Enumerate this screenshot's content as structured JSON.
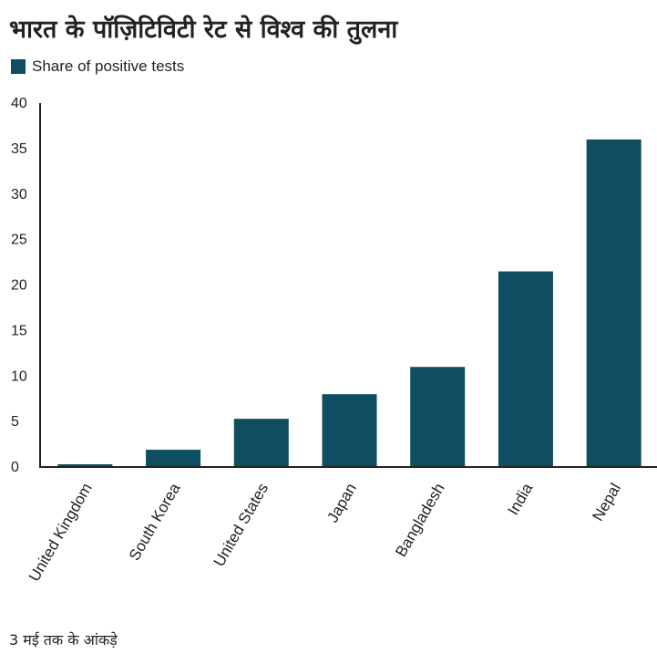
{
  "title": "भारत के पॉज़िटिविटी रेट से विश्व की तुलना",
  "footnote": "3 मई तक के आंकड़े",
  "colors": {
    "bar": "#0e4e60",
    "axis": "#222222",
    "text": "#222222"
  },
  "chart_data": {
    "type": "bar",
    "title": "भारत के पॉज़िटिविटी रेट से विश्व की तुलना",
    "xlabel": "",
    "ylabel": "",
    "legend": "top-left",
    "grid": false,
    "categories": [
      "United Kingdom",
      "South Korea",
      "United States",
      "Japan",
      "Bangladesh",
      "India",
      "Nepal"
    ],
    "series": [
      {
        "name": "Share of positive tests",
        "values": [
          0.3,
          1.9,
          5.3,
          8.0,
          11.0,
          21.5,
          36.0
        ]
      }
    ],
    "ylim": [
      0,
      40
    ],
    "yticks": [
      0,
      5,
      10,
      15,
      20,
      25,
      30,
      35,
      40
    ]
  }
}
